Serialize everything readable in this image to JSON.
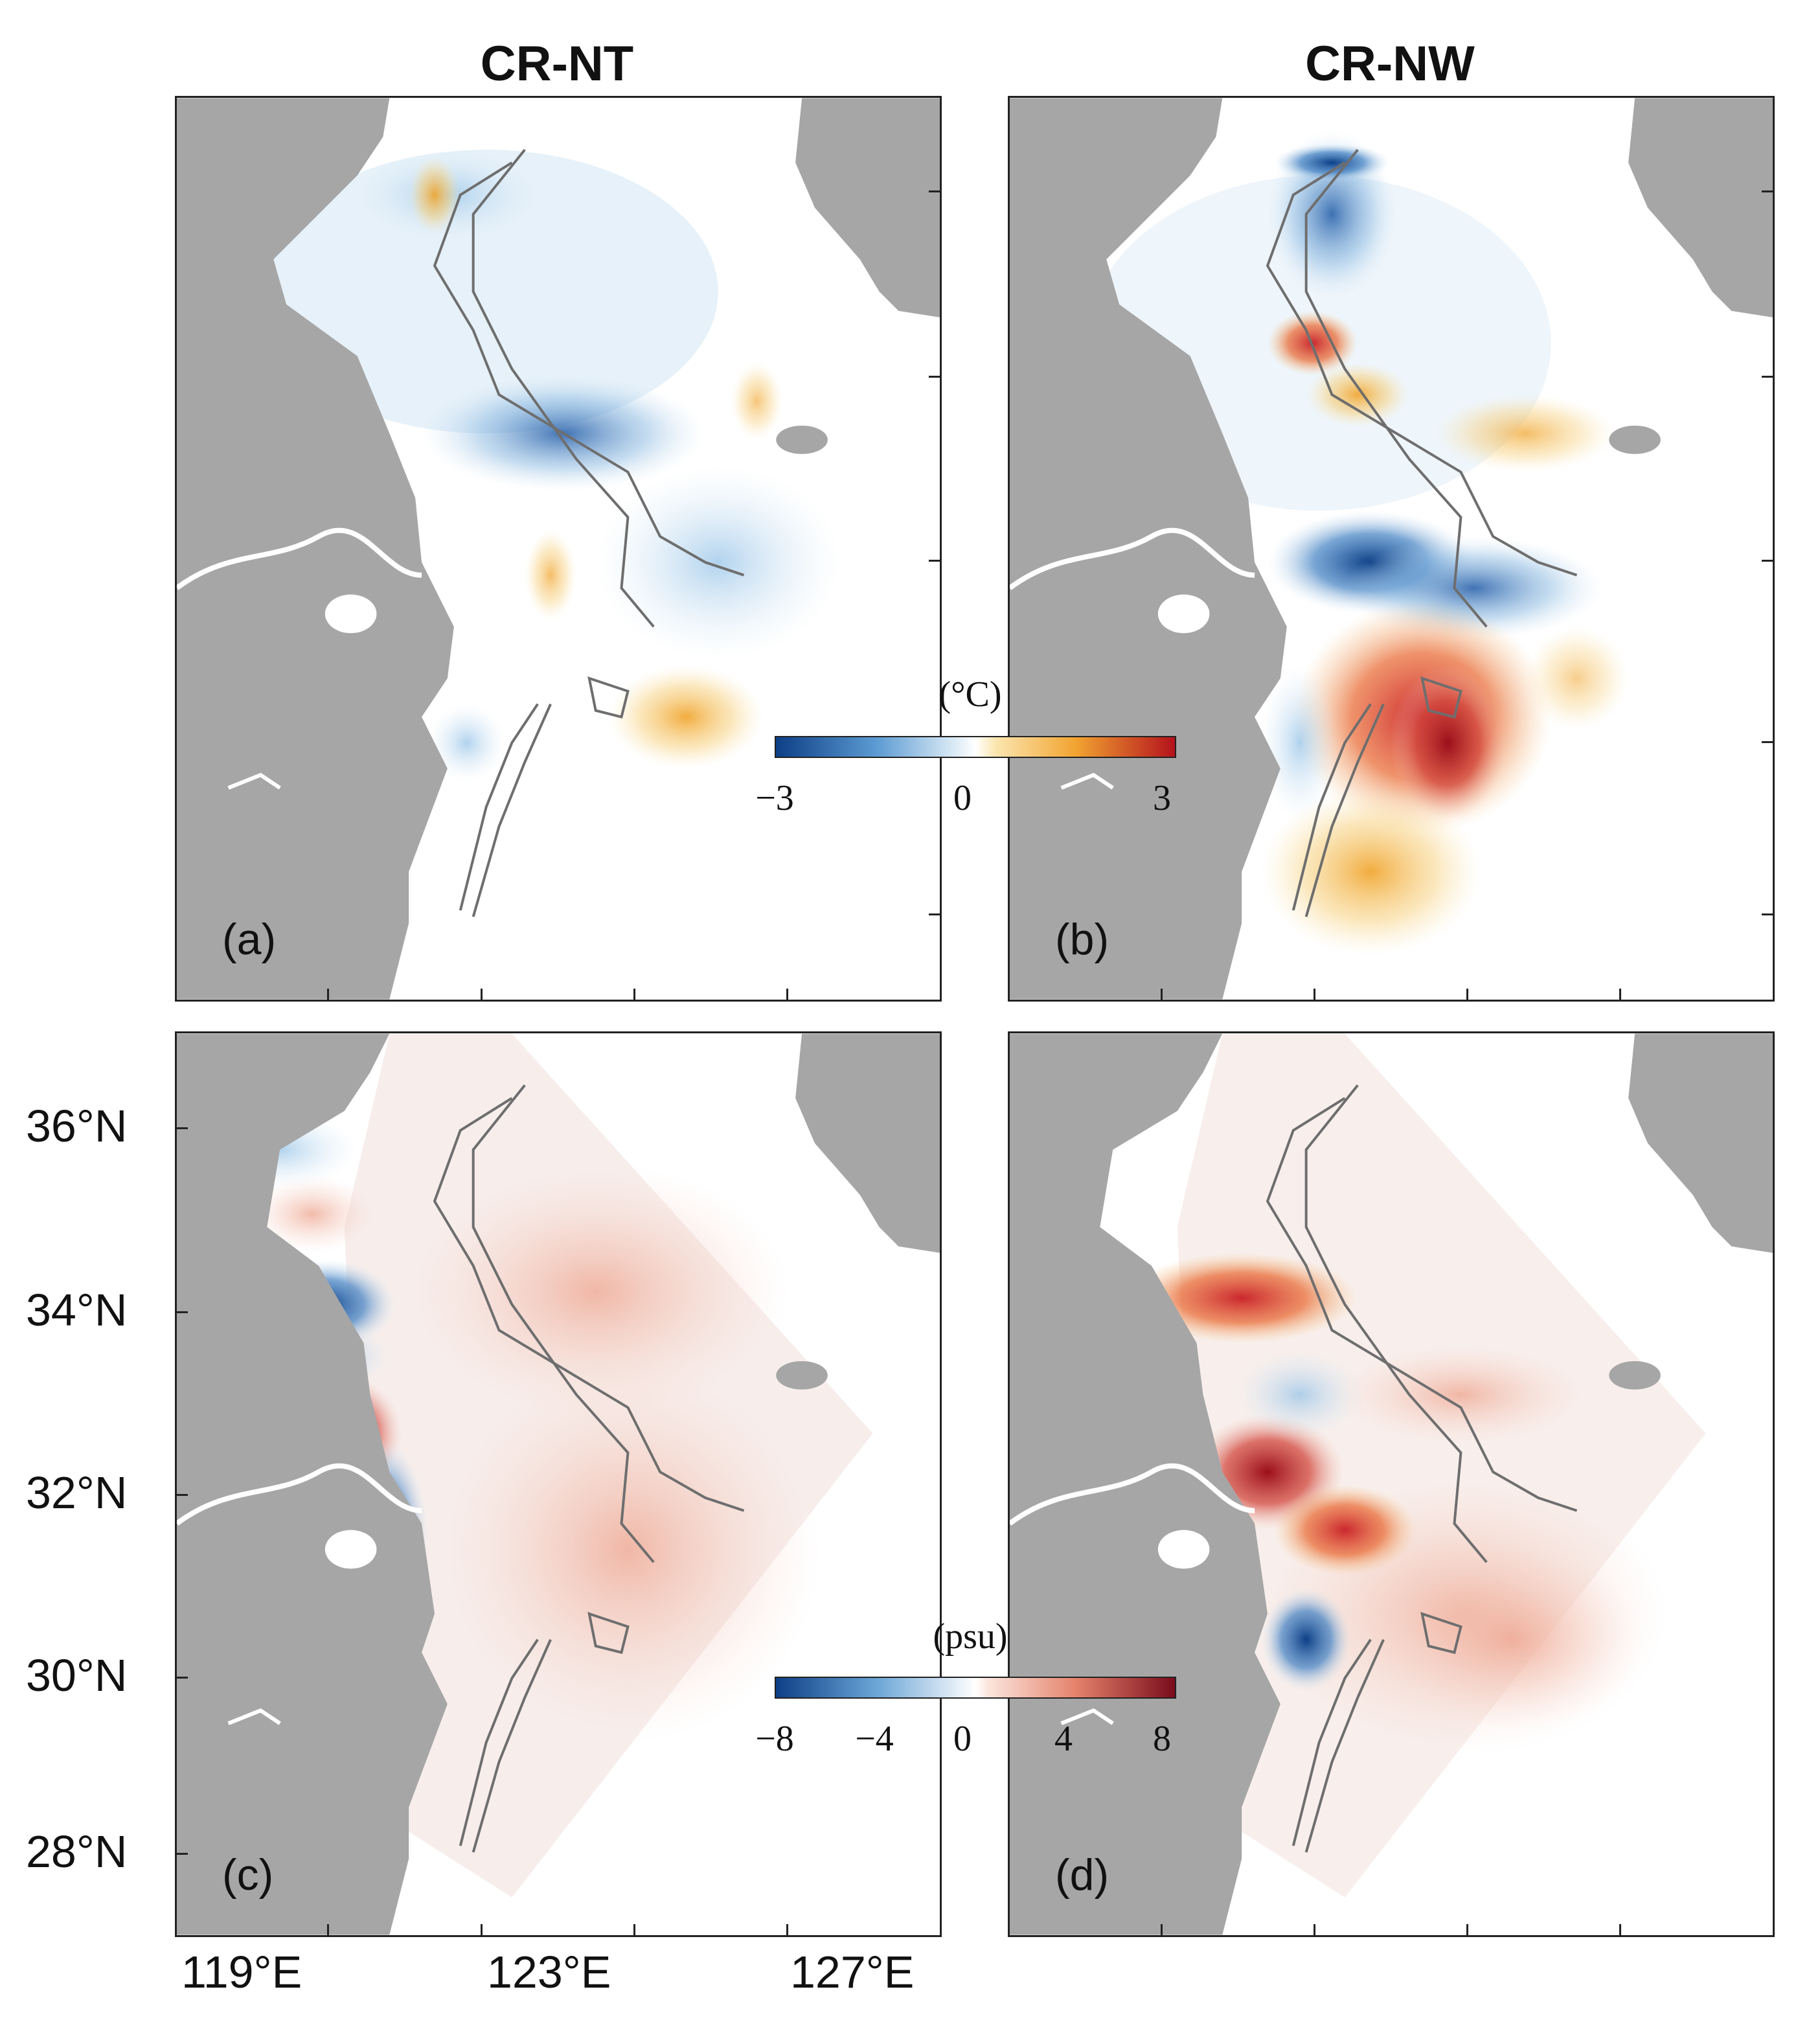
{
  "columns": {
    "left_title": "CR-NT",
    "right_title": "CR-NW"
  },
  "panels": {
    "a": "(a)",
    "b": "(b)",
    "c": "(c)",
    "d": "(d)"
  },
  "lat_labels": [
    "36°N",
    "34°N",
    "32°N",
    "30°N",
    "28°N"
  ],
  "lon_labels": [
    "119°E",
    "123°E",
    "127°E"
  ],
  "colorbar_temp": {
    "unit": "(°C)",
    "ticks": [
      "−3",
      "0",
      "3"
    ],
    "min": -3,
    "max": 3
  },
  "colorbar_salt": {
    "unit": "(psu)",
    "ticks": [
      "−8",
      "−4",
      "0",
      "4",
      "8"
    ],
    "min": -8,
    "max": 8
  },
  "colors": {
    "land": "#a6a6a6",
    "negative": "#1f5aa6",
    "positive": "#c81d25",
    "contour": "#6e6e6e"
  }
}
